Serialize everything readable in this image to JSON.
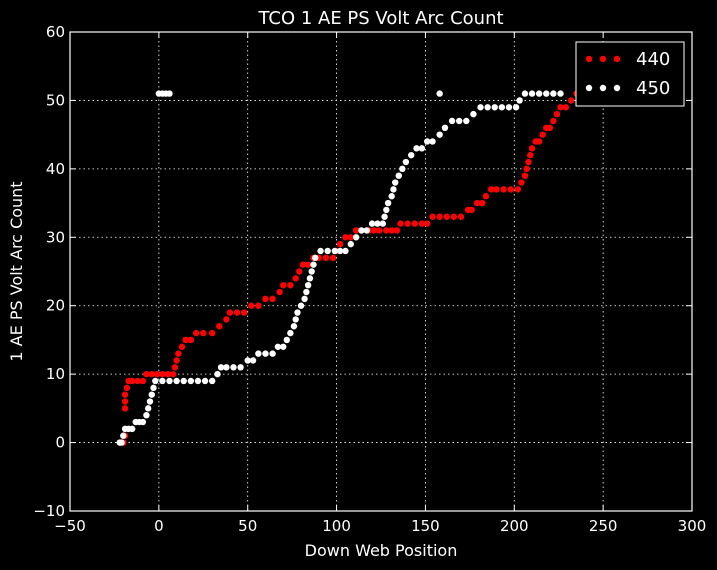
{
  "chart_data": {
    "type": "scatter",
    "title": "TCO 1 AE PS Volt Arc Count",
    "xlabel": "Down Web Position",
    "ylabel": "1 AE PS Volt Arc Count",
    "xlim": [
      -50,
      300
    ],
    "ylim": [
      -10,
      60
    ],
    "xticks": [
      "−50",
      "0",
      "50",
      "100",
      "150",
      "200",
      "250",
      "300"
    ],
    "yticks": [
      "−10",
      "0",
      "10",
      "20",
      "30",
      "40",
      "50",
      "60"
    ],
    "grid": true,
    "legend_position": "top-right",
    "series": [
      {
        "name": "440",
        "color": "#ff0000",
        "points": [
          [
            -20,
            0
          ],
          [
            -19,
            1
          ],
          [
            -19,
            5
          ],
          [
            -19,
            6
          ],
          [
            -19,
            7
          ],
          [
            -18,
            8
          ],
          [
            -17,
            9
          ],
          [
            -15,
            9
          ],
          [
            -12,
            9
          ],
          [
            -9,
            9
          ],
          [
            -7,
            10
          ],
          [
            -4,
            10
          ],
          [
            -1,
            10
          ],
          [
            2,
            10
          ],
          [
            5,
            10
          ],
          [
            8,
            10
          ],
          [
            9,
            11
          ],
          [
            10,
            12
          ],
          [
            11,
            13
          ],
          [
            13,
            14
          ],
          [
            15,
            15
          ],
          [
            18,
            15
          ],
          [
            21,
            16
          ],
          [
            25,
            16
          ],
          [
            30,
            16
          ],
          [
            34,
            17
          ],
          [
            38,
            18
          ],
          [
            40,
            19
          ],
          [
            44,
            19
          ],
          [
            48,
            19
          ],
          [
            52,
            20
          ],
          [
            56,
            20
          ],
          [
            60,
            21
          ],
          [
            64,
            21
          ],
          [
            68,
            22
          ],
          [
            70,
            23
          ],
          [
            74,
            23
          ],
          [
            77,
            24
          ],
          [
            79,
            25
          ],
          [
            81,
            26
          ],
          [
            84,
            26
          ],
          [
            87,
            27
          ],
          [
            90,
            27
          ],
          [
            94,
            27
          ],
          [
            98,
            27
          ],
          [
            100,
            28
          ],
          [
            102,
            29
          ],
          [
            105,
            30
          ],
          [
            108,
            30
          ],
          [
            111,
            31
          ],
          [
            114,
            31
          ],
          [
            118,
            31
          ],
          [
            121,
            31
          ],
          [
            124,
            31
          ],
          [
            128,
            31
          ],
          [
            131,
            31
          ],
          [
            134,
            31
          ],
          [
            136,
            32
          ],
          [
            140,
            32
          ],
          [
            144,
            32
          ],
          [
            148,
            32
          ],
          [
            151,
            32
          ],
          [
            154,
            33
          ],
          [
            158,
            33
          ],
          [
            162,
            33
          ],
          [
            166,
            33
          ],
          [
            170,
            33
          ],
          [
            174,
            34
          ],
          [
            176,
            34
          ],
          [
            179,
            35
          ],
          [
            182,
            35
          ],
          [
            184,
            36
          ],
          [
            187,
            37
          ],
          [
            190,
            37
          ],
          [
            194,
            37
          ],
          [
            198,
            37
          ],
          [
            202,
            37
          ],
          [
            204,
            38
          ],
          [
            206,
            39
          ],
          [
            207,
            40
          ],
          [
            208,
            41
          ],
          [
            209,
            42
          ],
          [
            210,
            43
          ],
          [
            212,
            44
          ],
          [
            214,
            44
          ],
          [
            216,
            45
          ],
          [
            218,
            46
          ],
          [
            220,
            46
          ],
          [
            222,
            47
          ],
          [
            224,
            48
          ],
          [
            226,
            49
          ],
          [
            229,
            49
          ],
          [
            232,
            50
          ],
          [
            235,
            51
          ]
        ]
      },
      {
        "name": "450",
        "color": "#ffffff",
        "points": [
          [
            -22,
            0
          ],
          [
            -21,
            0
          ],
          [
            -20,
            1
          ],
          [
            -19,
            2
          ],
          [
            -17,
            2
          ],
          [
            -15,
            2
          ],
          [
            -13,
            3
          ],
          [
            -11,
            3
          ],
          [
            -9,
            3
          ],
          [
            -7,
            4
          ],
          [
            -6,
            5
          ],
          [
            -5,
            6
          ],
          [
            -4,
            7
          ],
          [
            -3,
            8
          ],
          [
            -2,
            9
          ],
          [
            2,
            9
          ],
          [
            6,
            9
          ],
          [
            10,
            9
          ],
          [
            14,
            9
          ],
          [
            18,
            9
          ],
          [
            22,
            9
          ],
          [
            26,
            9
          ],
          [
            30,
            9
          ],
          [
            33,
            10
          ],
          [
            35,
            11
          ],
          [
            38,
            11
          ],
          [
            42,
            11
          ],
          [
            46,
            11
          ],
          [
            50,
            12
          ],
          [
            53,
            12
          ],
          [
            56,
            13
          ],
          [
            60,
            13
          ],
          [
            64,
            13
          ],
          [
            67,
            14
          ],
          [
            70,
            14
          ],
          [
            72,
            15
          ],
          [
            74,
            16
          ],
          [
            76,
            17
          ],
          [
            77,
            18
          ],
          [
            78,
            19
          ],
          [
            80,
            20
          ],
          [
            82,
            21
          ],
          [
            83,
            22
          ],
          [
            84,
            23
          ],
          [
            85,
            24
          ],
          [
            86,
            25
          ],
          [
            87,
            26
          ],
          [
            88,
            27
          ],
          [
            91,
            28
          ],
          [
            95,
            28
          ],
          [
            99,
            28
          ],
          [
            102,
            28
          ],
          [
            105,
            28
          ],
          [
            108,
            29
          ],
          [
            111,
            30
          ],
          [
            114,
            31
          ],
          [
            117,
            31
          ],
          [
            120,
            32
          ],
          [
            123,
            32
          ],
          [
            126,
            32
          ],
          [
            127,
            33
          ],
          [
            128,
            34
          ],
          [
            129,
            35
          ],
          [
            131,
            36
          ],
          [
            132,
            37
          ],
          [
            133,
            38
          ],
          [
            135,
            39
          ],
          [
            137,
            40
          ],
          [
            139,
            41
          ],
          [
            142,
            42
          ],
          [
            145,
            43
          ],
          [
            148,
            43
          ],
          [
            151,
            44
          ],
          [
            154,
            44
          ],
          [
            158,
            45
          ],
          [
            161,
            46
          ],
          [
            165,
            47
          ],
          [
            169,
            47
          ],
          [
            173,
            47
          ],
          [
            177,
            48
          ],
          [
            181,
            49
          ],
          [
            185,
            49
          ],
          [
            189,
            49
          ],
          [
            193,
            49
          ],
          [
            197,
            49
          ],
          [
            201,
            49
          ],
          [
            203,
            50
          ],
          [
            206,
            51
          ],
          [
            210,
            51
          ],
          [
            214,
            51
          ],
          [
            218,
            51
          ],
          [
            222,
            51
          ],
          [
            226,
            51
          ],
          [
            0,
            51
          ],
          [
            2,
            51
          ],
          [
            4,
            51
          ],
          [
            6,
            51
          ],
          [
            158,
            51
          ]
        ]
      }
    ]
  }
}
